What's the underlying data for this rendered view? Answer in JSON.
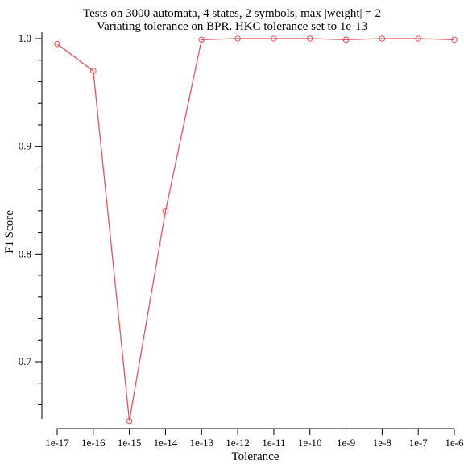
{
  "chart_data": {
    "type": "line",
    "title": "Tests on 3000 automata, 4 states, 2 symbols, max |weight| = 2",
    "subtitle": "Variating tolerance on BPR. HKC tolerance set to 1e-13",
    "xlabel": "Tolerance",
    "ylabel": "F1 Score",
    "x_scale": "log",
    "categories": [
      "1e-17",
      "1e-16",
      "1e-15",
      "1e-14",
      "1e-13",
      "1e-12",
      "1e-11",
      "1e-10",
      "1e-9",
      "1e-8",
      "1e-7",
      "1e-6"
    ],
    "values": [
      0.995,
      0.97,
      0.645,
      0.84,
      0.999,
      1.0,
      1.0,
      1.0,
      0.999,
      1.0,
      1.0,
      0.999
    ],
    "ylim": [
      0.65,
      1.0
    ],
    "y_ticks": [
      "1.0",
      "0.9",
      "0.8",
      "0.7"
    ],
    "y_minor_ticks": [
      0.98,
      0.96,
      0.94,
      0.92,
      0.88,
      0.86,
      0.84,
      0.82,
      0.78,
      0.76,
      0.74,
      0.72,
      0.68,
      0.66
    ],
    "series_color": "#e8525a",
    "grid": false,
    "legend": "none"
  }
}
